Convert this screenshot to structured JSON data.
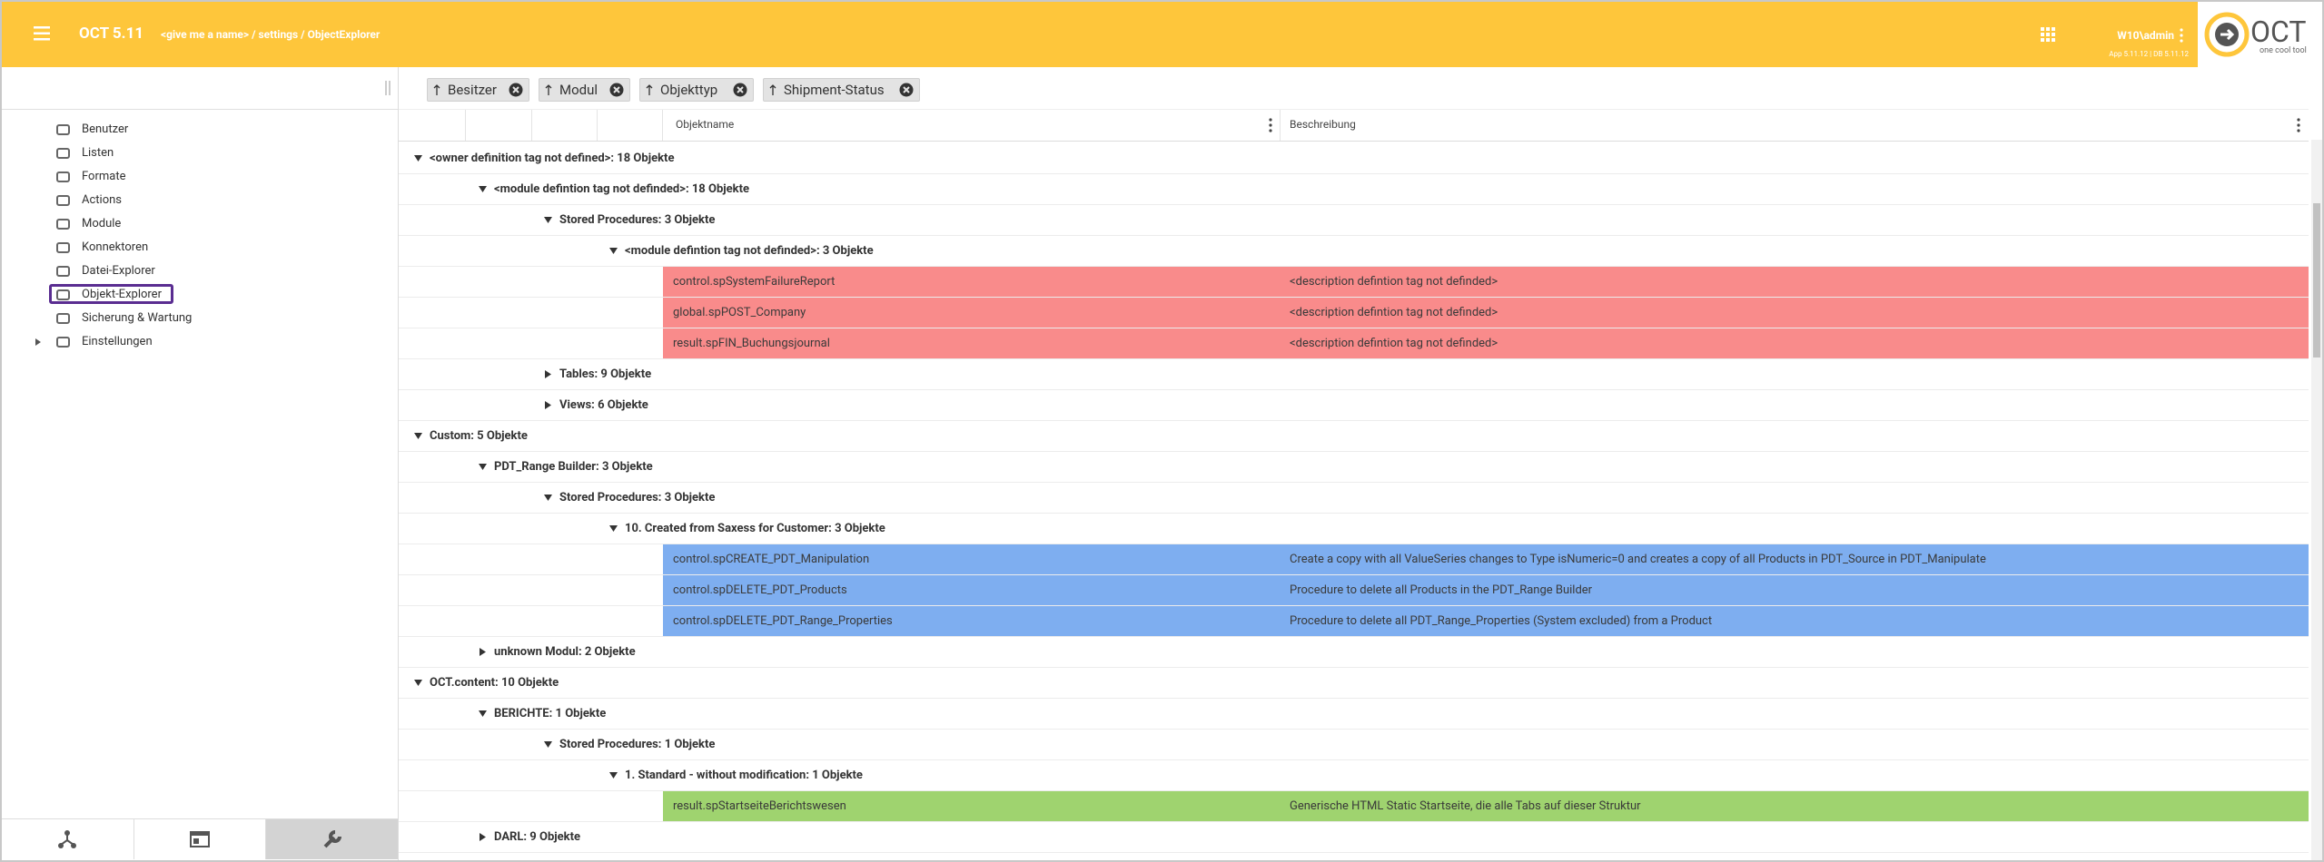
{
  "header": {
    "app_title": "OCT 5.11",
    "breadcrumb": "<give me a name> / settings / ObjectExplorer",
    "user": "W10\\admin",
    "version": "App 5.11.12 | DB 5.11.12",
    "logo": {
      "name": "OCT",
      "tagline": "one cool tool"
    }
  },
  "sidebar": {
    "items": [
      {
        "label": "Benutzer"
      },
      {
        "label": "Listen"
      },
      {
        "label": "Formate"
      },
      {
        "label": "Actions"
      },
      {
        "label": "Module"
      },
      {
        "label": "Konnektoren"
      },
      {
        "label": "Datei-Explorer"
      },
      {
        "label": "Objekt-Explorer",
        "selected": true
      },
      {
        "label": "Sicherung & Wartung"
      },
      {
        "label": "Einstellungen",
        "expandable": true
      }
    ]
  },
  "grouping": {
    "chips": [
      "Besitzer",
      "Modul",
      "Objekttyp",
      "Shipment-Status"
    ]
  },
  "table": {
    "columns": [
      "Objektname",
      "Beschreibung"
    ],
    "rows": [
      {
        "level": 0,
        "expanded": true,
        "label": "<owner definition tag not defined>: 18 Objekte"
      },
      {
        "level": 1,
        "expanded": true,
        "label": "<module defintion tag not definded>: 18 Objekte"
      },
      {
        "level": 2,
        "expanded": true,
        "label": "Stored Procedures: 3 Objekte"
      },
      {
        "level": 3,
        "expanded": true,
        "label": "<module defintion tag not definded>: 3 Objekte"
      },
      {
        "name": "control.spSystemFailureReport",
        "description": "<description defintion tag not definded>",
        "color": "#f98b8b"
      },
      {
        "name": "global.spPOST_Company",
        "description": "<description defintion tag not definded>",
        "color": "#f98b8b"
      },
      {
        "name": "result.spFIN_Buchungsjournal",
        "description": "<description defintion tag not definded>",
        "color": "#f98b8b"
      },
      {
        "level": 2,
        "expanded": false,
        "label": "Tables: 9 Objekte"
      },
      {
        "level": 2,
        "expanded": false,
        "label": "Views: 6 Objekte"
      },
      {
        "level": 0,
        "expanded": true,
        "label": "Custom: 5 Objekte"
      },
      {
        "level": 1,
        "expanded": true,
        "label": "PDT_Range Builder: 3 Objekte"
      },
      {
        "level": 2,
        "expanded": true,
        "label": "Stored Procedures: 3 Objekte"
      },
      {
        "level": 3,
        "expanded": true,
        "label": "10. Created from Saxess for Customer: 3 Objekte"
      },
      {
        "name": "control.spCREATE_PDT_Manipulation",
        "description": "Create a copy with all ValueSeries changes to Type isNumeric=0 and creates a copy of all Products in PDT_Source in PDT_Manipulate",
        "color": "#7eaef0"
      },
      {
        "name": "control.spDELETE_PDT_Products",
        "description": "Procedure to delete all Products in the PDT_Range Builder",
        "color": "#7eaef0"
      },
      {
        "name": "control.spDELETE_PDT_Range_Properties",
        "description": "Procedure to delete all PDT_Range_Properties (System excluded) from a Product",
        "color": "#7eaef0"
      },
      {
        "level": 1,
        "expanded": false,
        "label": "unknown Modul: 2 Objekte"
      },
      {
        "level": 0,
        "expanded": true,
        "label": "OCT.content: 10 Objekte"
      },
      {
        "level": 1,
        "expanded": true,
        "label": "BERICHTE: 1 Objekte"
      },
      {
        "level": 2,
        "expanded": true,
        "label": "Stored Procedures: 1 Objekte"
      },
      {
        "level": 3,
        "expanded": true,
        "label": "1. Standard - without modification: 1 Objekte"
      },
      {
        "name": "result.spStartseiteBerichtswesen",
        "description": "Generische HTML Static Startseite, die alle Tabs auf dieser Struktur",
        "color": "#9fd36f"
      },
      {
        "level": 1,
        "expanded": false,
        "label": "DARL: 9 Objekte"
      }
    ]
  }
}
